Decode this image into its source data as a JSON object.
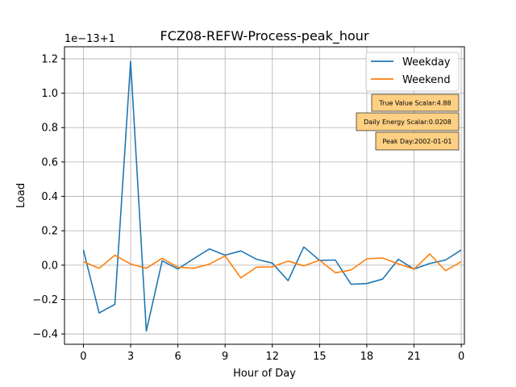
{
  "chart_data": {
    "type": "line",
    "title": "FCZ08-REFW-Process-peak_hour",
    "xlabel": "Hour of Day",
    "ylabel": "Load",
    "offset_text": "1e−13+1",
    "x_tick_labels": [
      "0",
      "3",
      "6",
      "9",
      "12",
      "15",
      "18",
      "21",
      "0"
    ],
    "y_tick_labels": [
      "−0.4",
      "−0.2",
      "0.0",
      "0.2",
      "0.4",
      "0.6",
      "0.8",
      "1.0",
      "1.2"
    ],
    "xlim": [
      -1.2,
      24.2
    ],
    "ylim": [
      -0.46,
      1.27
    ],
    "grid": true,
    "legend_position": "upper right",
    "x": [
      0,
      1,
      2,
      3,
      4,
      5,
      6,
      7,
      8,
      9,
      10,
      11,
      12,
      13,
      14,
      15,
      16,
      17,
      18,
      19,
      20,
      21,
      22,
      23,
      24
    ],
    "series": [
      {
        "name": "Weekday",
        "color": "#1f77b4",
        "values": [
          0.088,
          -0.278,
          -0.228,
          1.185,
          -0.383,
          0.025,
          -0.022,
          0.037,
          0.094,
          0.058,
          0.083,
          0.034,
          0.012,
          -0.09,
          0.106,
          0.028,
          0.03,
          -0.111,
          -0.107,
          -0.081,
          0.034,
          -0.023,
          0.01,
          0.03,
          0.088
        ]
      },
      {
        "name": "Weekend",
        "color": "#ff7f0e",
        "values": [
          0.02,
          -0.018,
          0.058,
          0.007,
          -0.018,
          0.04,
          -0.012,
          -0.018,
          0.006,
          0.054,
          -0.074,
          -0.012,
          -0.01,
          0.024,
          -0.004,
          0.029,
          -0.044,
          -0.028,
          0.037,
          0.042,
          0.008,
          -0.023,
          0.065,
          -0.032,
          0.02
        ]
      }
    ],
    "annotations": [
      "True Value Scalar:4.88",
      "Daily Energy Scalar:0.0208",
      "Peak Day:2002-01-01"
    ],
    "annotation_style": {
      "fill": "#fdd083",
      "border": "#000000"
    },
    "axes_color": "#000000",
    "grid_color": "#b0b0b0"
  }
}
